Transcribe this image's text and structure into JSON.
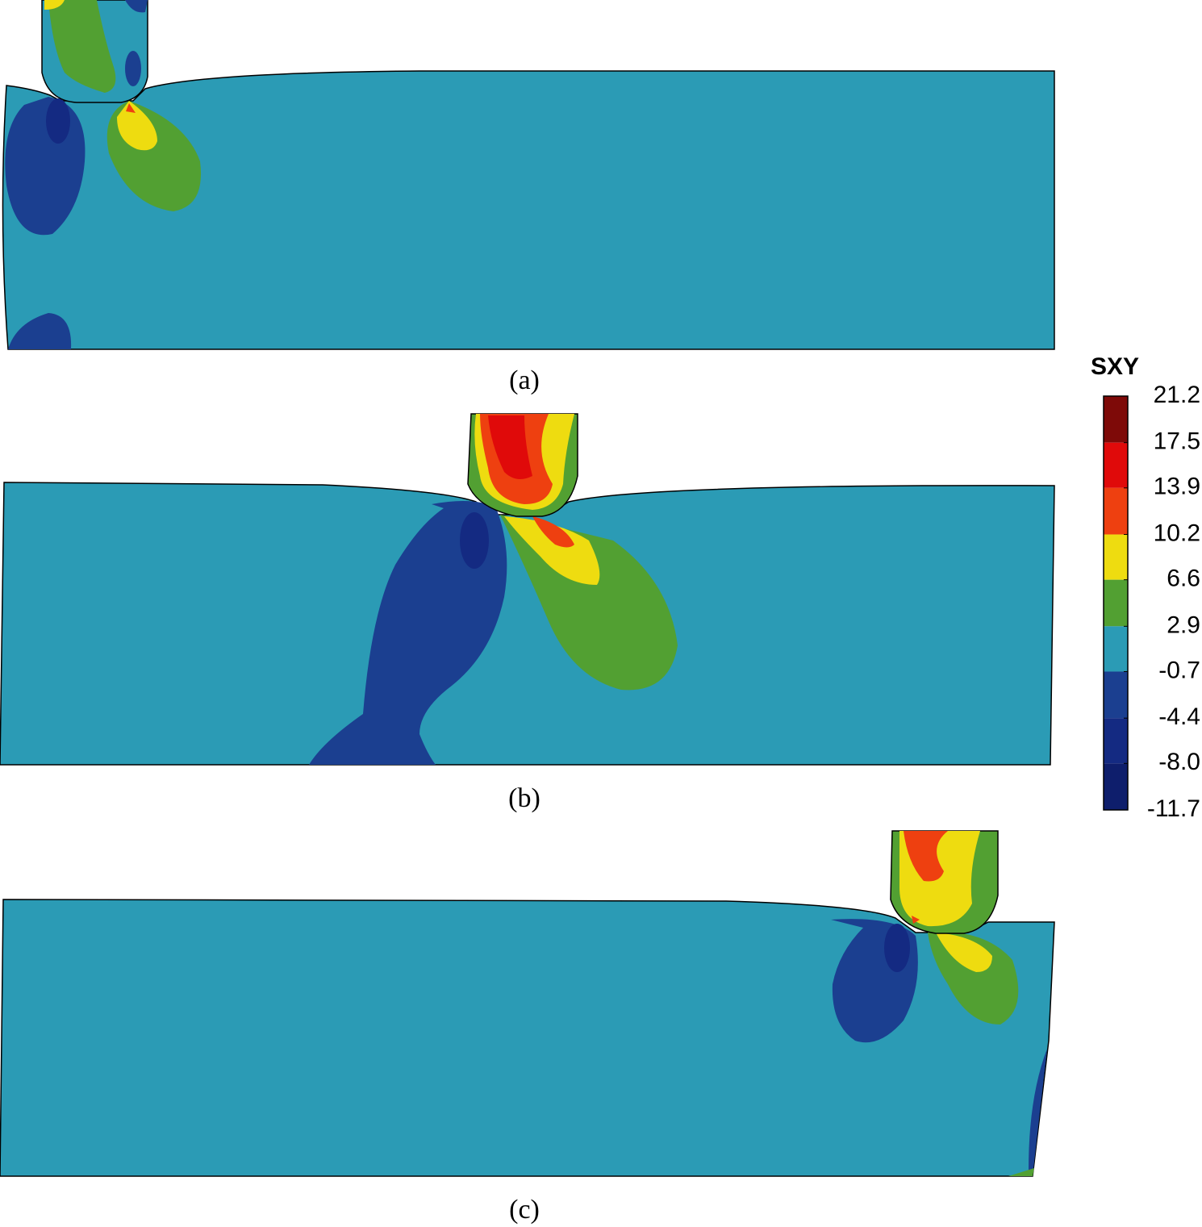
{
  "panels": [
    {
      "label": "(a)"
    },
    {
      "label": "(b)"
    },
    {
      "label": "(c)"
    }
  ],
  "colorbar": {
    "title": "SXY",
    "ticks": [
      21.2,
      17.5,
      13.9,
      10.2,
      6.6,
      2.9,
      -0.7,
      -4.4,
      {
        "value": -8,
        "label": "-8.0"
      },
      -11.7
    ],
    "colors": [
      "#7e0a08",
      "#e00a0a",
      "#ee4010",
      "#eedc10",
      "#52a032",
      "#2b9bb5",
      "#1b3f90",
      "#142a82",
      "#0e1e6c",
      "#0a1458"
    ]
  }
}
